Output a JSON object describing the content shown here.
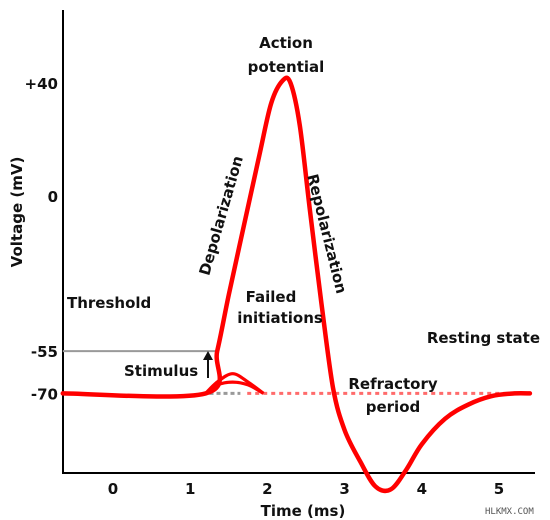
{
  "chart_data": {
    "type": "line",
    "xlabel": "Time (ms)",
    "ylabel": "Voltage (mV)",
    "xlim": [
      -0.65,
      5.4
    ],
    "ylim": [
      -115,
      65
    ],
    "x_ticks": [
      "0",
      "1",
      "2",
      "3",
      "4",
      "5"
    ],
    "x_tick_values": [
      0,
      1,
      2,
      3,
      4,
      5
    ],
    "y_ticks": [
      "+40",
      "0",
      "-55",
      "-70"
    ],
    "y_tick_values": [
      40,
      0,
      -55,
      -70
    ],
    "grid": false,
    "series": [
      {
        "color": "#ff0000",
        "x": [
          -0.65,
          1.2,
          1.35,
          1.5,
          1.7,
          1.9,
          2.05,
          2.2,
          2.3,
          2.42,
          2.55,
          2.7,
          2.85,
          3.0,
          3.2,
          3.4,
          3.6,
          3.8,
          4.0,
          4.3,
          4.6,
          4.9,
          5.2,
          5.4
        ],
        "y": [
          -70,
          -70,
          -55,
          -35,
          -10,
          15,
          33,
          41,
          40,
          25,
          -5,
          -38,
          -68,
          -83,
          -94,
          -103,
          -104,
          -97,
          -88,
          -79,
          -74,
          -71,
          -70,
          -70
        ]
      },
      {
        "name": "Failed initiations",
        "color": "#ff0000",
        "curves": [
          {
            "x": [
              1.2,
              1.35,
              1.55,
              1.75,
              1.95
            ],
            "y": [
              -70,
              -66,
              -63,
              -66,
              -70
            ]
          },
          {
            "x": [
              1.2,
              1.35,
              1.55,
              1.75,
              1.95
            ],
            "y": [
              -70,
              -67,
              -66,
              -67,
              -70
            ]
          }
        ]
      }
    ],
    "reference_lines": [
      {
        "label": "Threshold",
        "y": -55,
        "x_start": -0.65,
        "x_end": 1.35,
        "color": "#888888",
        "style": "solid"
      },
      {
        "label": "Resting state",
        "y": -70,
        "x_start": 1.35,
        "x_end": 5.4,
        "color": "#ff6666",
        "style": "dashed"
      }
    ],
    "annotations": [
      {
        "text": "Action potential",
        "at": "peak"
      },
      {
        "text": "Depolarization",
        "at": "rising phase"
      },
      {
        "text": "Repolarization",
        "at": "falling phase"
      },
      {
        "text": "Failed initiations",
        "at": "above small bumps"
      },
      {
        "text": "Stimulus",
        "at": "arrow at onset"
      },
      {
        "text": "Refractory period",
        "at": "trough"
      },
      {
        "text": "Resting state",
        "at": "right end of baseline"
      }
    ],
    "labels": {
      "action": "Action",
      "potential": "potential",
      "depolarization": "Depolarization",
      "repolarization": "Repolarization",
      "failed": "Failed",
      "initiations": "initiations",
      "threshold": "Threshold",
      "resting": "Resting state",
      "stimulus": "Stimulus",
      "refractory": "Refractory",
      "period": "period"
    },
    "watermark": "HLKMX.COM"
  }
}
